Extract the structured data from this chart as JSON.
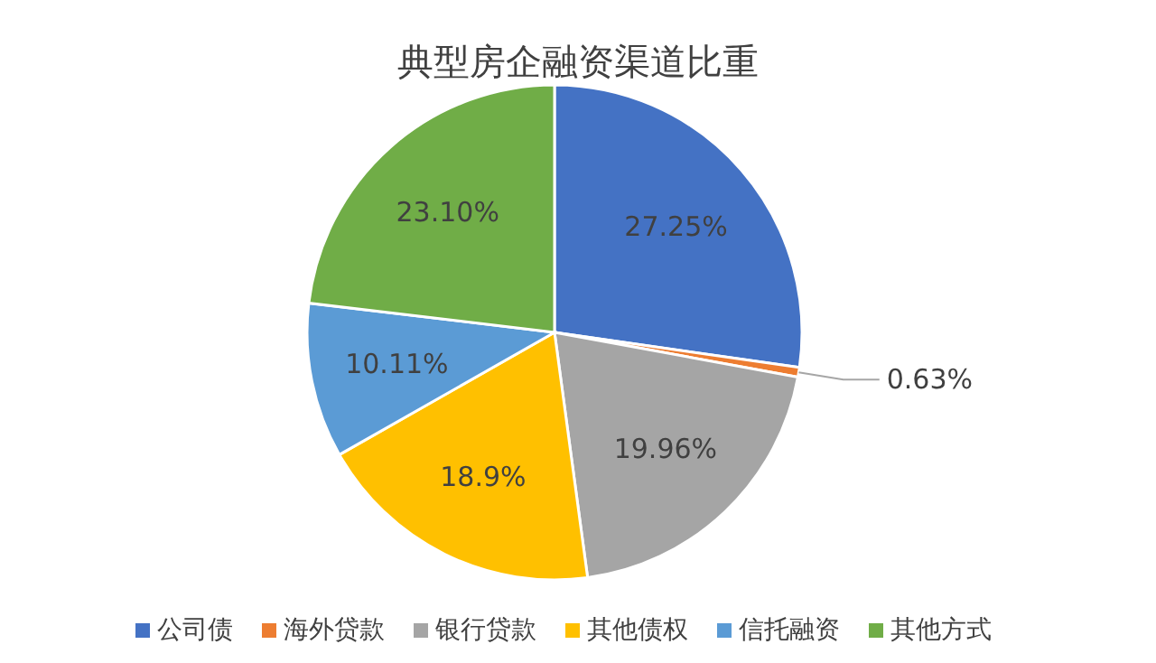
{
  "chart_data": {
    "type": "pie",
    "title": "典型房企融资渠道比重",
    "categories": [
      "公司债",
      "海外贷款",
      "银行贷款",
      "其他债权",
      "信托融资",
      "其他方式"
    ],
    "values": [
      27.25,
      0.63,
      19.96,
      18.9,
      10.11,
      23.1
    ],
    "value_labels": [
      "27.25%",
      "0.63%",
      "19.96%",
      "18.9%",
      "10.11%",
      "23.10%"
    ],
    "colors": [
      "#4472c4",
      "#ed7d31",
      "#a5a5a5",
      "#ffc000",
      "#5b9bd5",
      "#70ad47"
    ],
    "legend": "bottom"
  }
}
